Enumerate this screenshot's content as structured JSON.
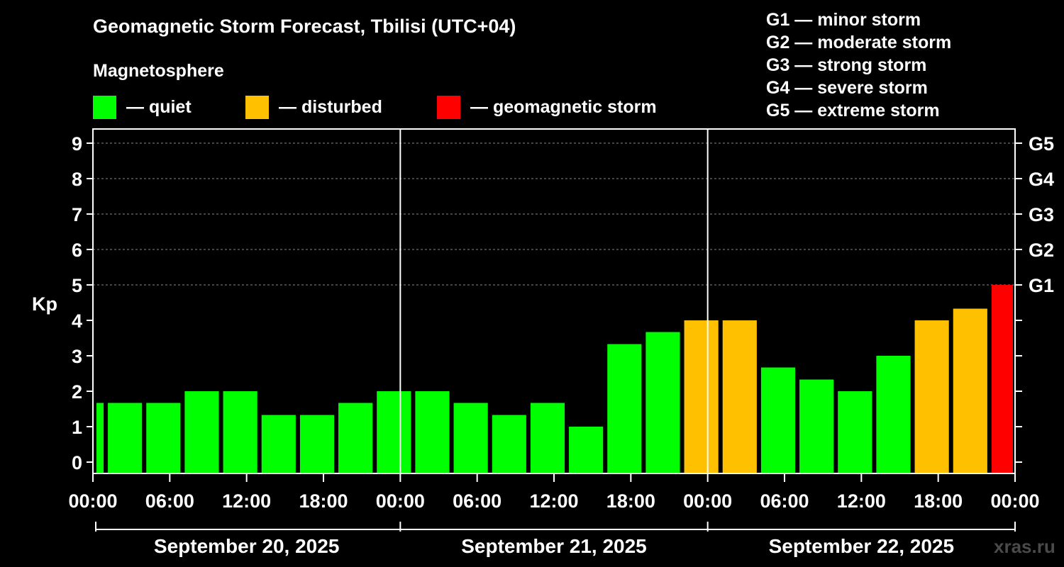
{
  "header": {
    "title": "Geomagnetic Storm Forecast, Tbilisi (UTC+04)",
    "subtitle": "Magnetosphere",
    "watermark": "xras.ru"
  },
  "legend": [
    {
      "label": "— quiet",
      "color": "#00ff00"
    },
    {
      "label": "— disturbed",
      "color": "#ffc000"
    },
    {
      "label": "— geomagnetic storm",
      "color": "#ff0000"
    }
  ],
  "storm_scale": [
    {
      "label": "G1 — minor storm"
    },
    {
      "label": "G2 — moderate storm"
    },
    {
      "label": "G3 — strong storm"
    },
    {
      "label": "G4 — severe storm"
    },
    {
      "label": "G5 — extreme storm"
    }
  ],
  "chart_data": {
    "type": "bar",
    "ylabel": "Kp",
    "ylim": [
      0,
      9
    ],
    "yticks": [
      "0",
      "1",
      "2",
      "3",
      "4",
      "5",
      "6",
      "7",
      "8",
      "9"
    ],
    "right_ticks": [
      {
        "kp": 5,
        "label": "G1"
      },
      {
        "kp": 6,
        "label": "G2"
      },
      {
        "kp": 7,
        "label": "G3"
      },
      {
        "kp": 8,
        "label": "G4"
      },
      {
        "kp": 9,
        "label": "G5"
      }
    ],
    "grid_y": [
      5,
      6,
      7,
      8,
      9
    ],
    "time_ticks": [
      {
        "hour": 0,
        "label": "00:00"
      },
      {
        "hour": 6,
        "label": "06:00"
      },
      {
        "hour": 12,
        "label": "12:00"
      },
      {
        "hour": 18,
        "label": "18:00"
      },
      {
        "hour": 24,
        "label": "00:00"
      },
      {
        "hour": 30,
        "label": "06:00"
      },
      {
        "hour": 36,
        "label": "12:00"
      },
      {
        "hour": 42,
        "label": "18:00"
      },
      {
        "hour": 48,
        "label": "00:00"
      },
      {
        "hour": 54,
        "label": "06:00"
      },
      {
        "hour": 60,
        "label": "12:00"
      },
      {
        "hour": 66,
        "label": "18:00"
      },
      {
        "hour": 72,
        "label": "00:00"
      }
    ],
    "days": [
      {
        "label": "September 20, 2025",
        "start": 0,
        "end": 24
      },
      {
        "label": "September 21, 2025",
        "start": 24,
        "end": 48
      },
      {
        "label": "September 22, 2025",
        "start": 48,
        "end": 72
      }
    ],
    "colors": {
      "quiet": "#00ff00",
      "disturbed": "#ffc000",
      "storm": "#ff0000"
    },
    "bars": [
      {
        "start": 0,
        "end": 1,
        "kp": 1.67,
        "level": "quiet"
      },
      {
        "start": 1,
        "end": 4,
        "kp": 1.67,
        "level": "quiet"
      },
      {
        "start": 4,
        "end": 7,
        "kp": 1.67,
        "level": "quiet"
      },
      {
        "start": 7,
        "end": 10,
        "kp": 2.0,
        "level": "quiet"
      },
      {
        "start": 10,
        "end": 13,
        "kp": 2.0,
        "level": "quiet"
      },
      {
        "start": 13,
        "end": 16,
        "kp": 1.33,
        "level": "quiet"
      },
      {
        "start": 16,
        "end": 19,
        "kp": 1.33,
        "level": "quiet"
      },
      {
        "start": 19,
        "end": 22,
        "kp": 1.67,
        "level": "quiet"
      },
      {
        "start": 22,
        "end": 25,
        "kp": 2.0,
        "level": "quiet"
      },
      {
        "start": 25,
        "end": 28,
        "kp": 2.0,
        "level": "quiet"
      },
      {
        "start": 28,
        "end": 31,
        "kp": 1.67,
        "level": "quiet"
      },
      {
        "start": 31,
        "end": 34,
        "kp": 1.33,
        "level": "quiet"
      },
      {
        "start": 34,
        "end": 37,
        "kp": 1.67,
        "level": "quiet"
      },
      {
        "start": 37,
        "end": 40,
        "kp": 1.0,
        "level": "quiet"
      },
      {
        "start": 40,
        "end": 43,
        "kp": 3.33,
        "level": "quiet"
      },
      {
        "start": 43,
        "end": 46,
        "kp": 3.67,
        "level": "quiet"
      },
      {
        "start": 46,
        "end": 49,
        "kp": 4.0,
        "level": "disturbed"
      },
      {
        "start": 49,
        "end": 52,
        "kp": 4.0,
        "level": "disturbed"
      },
      {
        "start": 52,
        "end": 55,
        "kp": 2.67,
        "level": "quiet"
      },
      {
        "start": 55,
        "end": 58,
        "kp": 2.33,
        "level": "quiet"
      },
      {
        "start": 58,
        "end": 61,
        "kp": 2.0,
        "level": "quiet"
      },
      {
        "start": 61,
        "end": 64,
        "kp": 3.0,
        "level": "quiet"
      },
      {
        "start": 64,
        "end": 67,
        "kp": 4.0,
        "level": "disturbed"
      },
      {
        "start": 67,
        "end": 70,
        "kp": 4.33,
        "level": "disturbed"
      },
      {
        "start": 70,
        "end": 72,
        "kp": 5.0,
        "level": "storm"
      }
    ]
  }
}
